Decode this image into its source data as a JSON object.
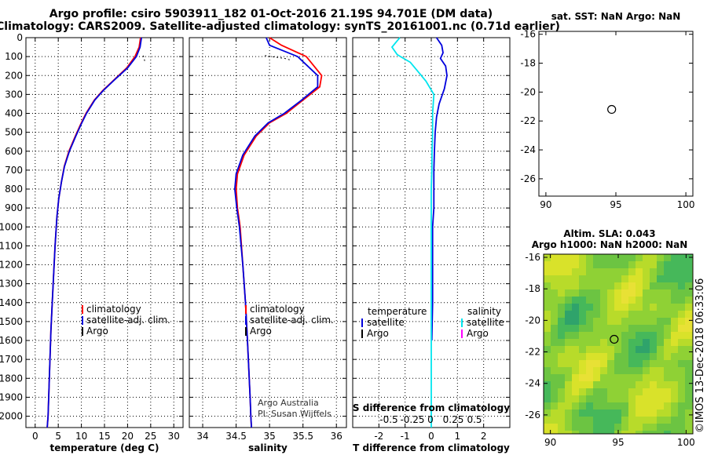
{
  "title": {
    "line1": "Argo profile: csiro 5903911_182 01-Oct-2016 21.19S 94.701E (DM data)",
    "line2": "Climatology: CARS2009. Satellite-adjusted climatology: synTS_20161001.nc (0.71d earlier)"
  },
  "colors": {
    "climatology": "#ff0000",
    "satellite": "#0000dd",
    "argo": "#000000",
    "sat_salinity": "#00e5ee",
    "argo_salinity": "#ff00ff"
  },
  "depth_ticks": [
    0,
    100,
    200,
    300,
    400,
    500,
    600,
    700,
    800,
    900,
    1000,
    1100,
    1200,
    1300,
    1400,
    1500,
    1600,
    1700,
    1800,
    1900,
    2000
  ],
  "chart_data": [
    {
      "type": "line",
      "name": "temperature",
      "xlabel": "temperature (deg C)",
      "ylabel": "",
      "xlim": [
        -2,
        32
      ],
      "ylim": [
        0,
        2060
      ],
      "xticks": [
        0,
        5,
        10,
        15,
        20,
        25,
        30
      ],
      "series": [
        {
          "name": "climatology",
          "color": "#ff0000",
          "x": [
            22.8,
            22.5,
            21.6,
            19.8,
            17.2,
            14.6,
            12.8,
            11.0,
            9.8,
            8.7,
            7.3,
            6.3,
            5.7,
            5.1,
            4.7,
            4.3,
            4.0,
            3.7,
            3.4,
            3.2,
            3.0,
            2.8,
            2.6
          ],
          "y": [
            0,
            50,
            100,
            160,
            220,
            280,
            330,
            400,
            460,
            520,
            600,
            680,
            760,
            850,
            950,
            1100,
            1250,
            1400,
            1550,
            1700,
            1850,
            2000,
            2060
          ]
        },
        {
          "name": "satellite-adj. clim.",
          "color": "#0000dd",
          "x": [
            23.0,
            22.7,
            21.9,
            20.0,
            17.3,
            14.7,
            12.9,
            11.1,
            9.9,
            8.8,
            7.4,
            6.35,
            5.7,
            5.1,
            4.7,
            4.3,
            4.0,
            3.7,
            3.4,
            3.2,
            3.0,
            2.8,
            2.6
          ],
          "y": [
            0,
            50,
            100,
            160,
            220,
            280,
            330,
            400,
            460,
            520,
            600,
            680,
            760,
            850,
            950,
            1100,
            1250,
            1400,
            1550,
            1700,
            1850,
            2000,
            2060
          ]
        },
        {
          "name": "Argo",
          "color": "#000000",
          "x": [
            23.4,
            23.6,
            23.7
          ],
          "y": [
            95,
            110,
            125
          ]
        }
      ],
      "legend": [
        {
          "label": "climatology",
          "color": "#ff0000"
        },
        {
          "label": "satellite-adj. clim.",
          "color": "#0000dd"
        },
        {
          "label": "Argo",
          "color": "#000000"
        }
      ]
    },
    {
      "type": "line",
      "name": "salinity",
      "xlabel": "salinity",
      "ylabel": "",
      "xlim": [
        33.8,
        36.15
      ],
      "ylim": [
        0,
        2060
      ],
      "xticks": [
        34,
        34.5,
        35,
        35.5,
        36
      ],
      "xticklabels": [
        "34",
        "34.5",
        "35",
        "35.5",
        "36"
      ],
      "series": [
        {
          "name": "climatology",
          "color": "#ff0000",
          "x": [
            35.0,
            35.18,
            35.55,
            35.78,
            35.75,
            35.5,
            35.25,
            35.0,
            34.8,
            34.62,
            34.52,
            34.5,
            34.52,
            34.56,
            34.6,
            34.64,
            34.67,
            34.69,
            34.71,
            34.72,
            34.73
          ],
          "y": [
            0,
            40,
            100,
            200,
            260,
            330,
            400,
            450,
            520,
            620,
            720,
            800,
            900,
            1000,
            1200,
            1400,
            1600,
            1750,
            1900,
            2000,
            2060
          ]
        },
        {
          "name": "satellite-adj. clim.",
          "color": "#0000dd",
          "x": [
            34.95,
            35.0,
            35.42,
            35.72,
            35.72,
            35.48,
            35.22,
            34.98,
            34.78,
            34.6,
            34.5,
            34.48,
            34.51,
            34.55,
            34.6,
            34.64,
            34.67,
            34.69,
            34.71,
            34.72,
            34.73
          ],
          "y": [
            0,
            40,
            100,
            200,
            260,
            330,
            400,
            450,
            520,
            620,
            720,
            800,
            900,
            1000,
            1200,
            1400,
            1600,
            1750,
            1900,
            2000,
            2060
          ]
        },
        {
          "name": "Argo",
          "color": "#000000",
          "x": [
            34.93,
            35.03,
            35.13,
            35.23,
            35.33
          ],
          "y": [
            95,
            100,
            105,
            110,
            120
          ]
        }
      ],
      "legend": [
        {
          "label": "climatology",
          "color": "#ff0000"
        },
        {
          "label": "satellite-adj. clim.",
          "color": "#0000dd"
        },
        {
          "label": "Argo",
          "color": "#000000"
        }
      ],
      "annotation": [
        "Argo Australia",
        "PI: Susan Wijffels"
      ]
    },
    {
      "type": "line",
      "name": "difference",
      "xlabel": "T difference from climatology",
      "top_xlabel": "S difference from climatology",
      "xlim": [
        -3,
        3
      ],
      "ylim": [
        0,
        2060
      ],
      "xticks": [
        -2,
        -1,
        0,
        1,
        2
      ],
      "top_xticks": [
        -0.5,
        -0.25,
        0,
        0.25,
        0.5
      ],
      "top_xticklabels": [
        "-0.5",
        "-0.25",
        "0",
        "0.25",
        "0.5"
      ],
      "series": [
        {
          "name": "temperature satellite",
          "color": "#0000dd",
          "x": [
            0.2,
            0.4,
            0.45,
            0.35,
            0.55,
            0.6,
            0.5,
            0.3,
            0.2,
            0.15,
            0.12,
            0.1,
            0.1,
            0.1,
            0.05,
            0.05,
            0.05,
            0.02
          ],
          "y": [
            0,
            40,
            80,
            110,
            150,
            200,
            270,
            350,
            420,
            500,
            600,
            700,
            800,
            900,
            1000,
            1200,
            1400,
            1600
          ]
        },
        {
          "name": "salinity satellite",
          "color": "#00e5ee",
          "x": [
            -1.2,
            -1.5,
            -1.3,
            -0.8,
            -0.5,
            -0.2,
            0.1,
            0.05,
            0.05,
            0.03,
            0.02,
            0.0,
            0.0,
            0.0,
            0.0,
            0.0,
            0.0
          ],
          "y": [
            0,
            50,
            90,
            130,
            180,
            230,
            300,
            400,
            500,
            600,
            700,
            800,
            1000,
            1300,
            1600,
            1900,
            2060
          ]
        }
      ],
      "legend_groups": [
        {
          "header": "temperature",
          "items": [
            {
              "label": "satellite",
              "color": "#0000dd"
            },
            {
              "label": "Argo",
              "color": "#000000"
            }
          ]
        },
        {
          "header": "salinity",
          "items": [
            {
              "label": "satellite",
              "color": "#00e5ee"
            },
            {
              "label": "Argo",
              "color": "#ff00ff"
            }
          ]
        }
      ]
    },
    {
      "type": "scatter",
      "name": "sst_map",
      "title": "sat. SST: NaN Argo: NaN",
      "xlim": [
        89.5,
        100.5
      ],
      "ylim": [
        -27.2,
        -15.8
      ],
      "xticks": [
        90,
        95,
        100
      ],
      "yticks": [
        -16,
        -18,
        -20,
        -22,
        -24,
        -26
      ],
      "point": {
        "x": 94.7,
        "y": -21.2
      }
    },
    {
      "type": "heatmap",
      "name": "sla_map",
      "title_line1": "Altim. SLA: 0.043",
      "title_line2": "Argo h1000: NaN h2000: NaN",
      "xlim": [
        89.5,
        100.5
      ],
      "ylim": [
        -27.2,
        -15.8
      ],
      "xticks": [
        90,
        95,
        100
      ],
      "yticks": [
        -16,
        -18,
        -20,
        -22,
        -24,
        -26
      ],
      "point": {
        "x": 94.7,
        "y": -21.2
      }
    }
  ],
  "timestamp": "©IMOS 13-Dec-2018 06:33:06"
}
